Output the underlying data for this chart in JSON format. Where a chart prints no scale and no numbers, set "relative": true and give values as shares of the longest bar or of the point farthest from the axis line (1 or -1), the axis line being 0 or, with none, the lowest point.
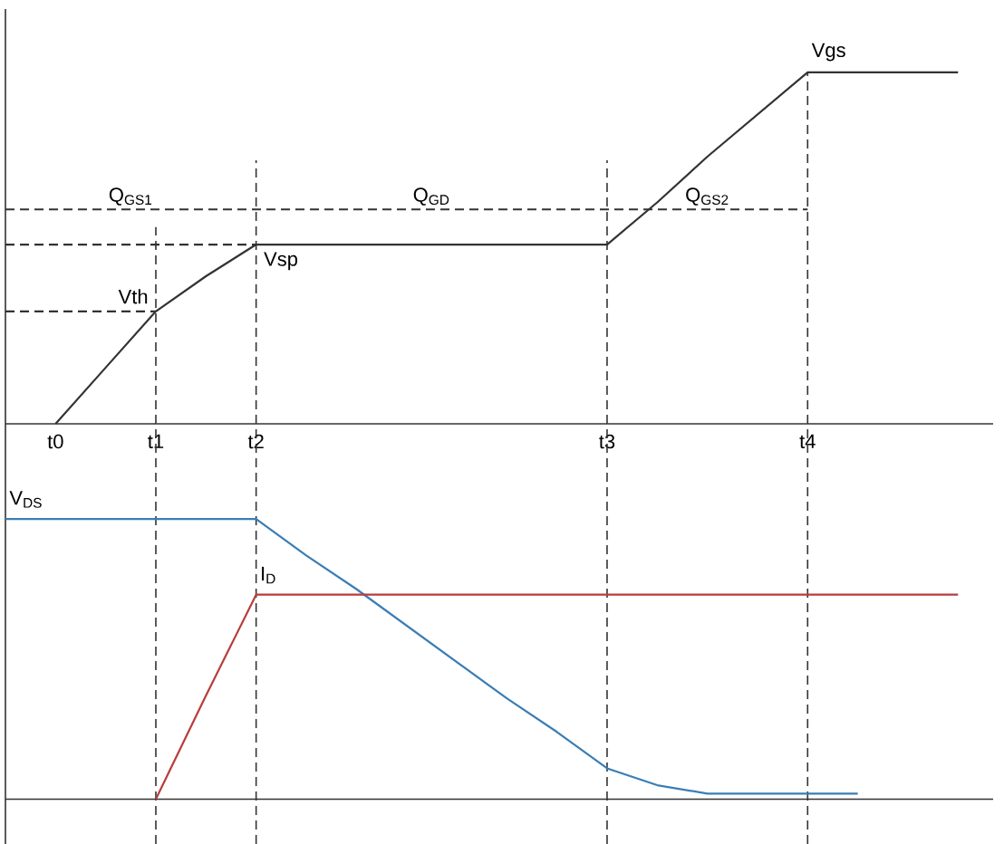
{
  "chart_data": [
    {
      "type": "line",
      "relative": true,
      "tick_labels": "x",
      "categories": [
        null,
        "t0",
        null,
        "t1",
        null,
        "t2",
        null,
        null,
        null,
        null,
        null,
        null,
        "t3",
        null,
        null,
        null,
        "t4",
        null,
        null,
        null
      ],
      "series": [
        {
          "name": "Vgs",
          "color": "#333333",
          "values": [
            null,
            0,
            0.16,
            0.32,
            0.42,
            0.51,
            0.51,
            0.51,
            0.51,
            0.51,
            0.51,
            0.51,
            0.51,
            0.63,
            0.76,
            0.88,
            1,
            1,
            1,
            1
          ]
        },
        {
          "color": "#333333",
          "line_style": "dashed",
          "values": [
            0.32,
            0.32,
            0.32,
            0.32,
            null,
            null,
            null,
            null,
            null,
            null,
            null,
            null,
            null,
            null,
            null,
            null,
            null,
            null,
            null,
            null
          ]
        },
        {
          "color": "#333333",
          "line_style": "dashed",
          "values": [
            0.51,
            0.51,
            0.51,
            0.51,
            0.51,
            0.51,
            null,
            null,
            null,
            null,
            null,
            null,
            null,
            null,
            null,
            null,
            null,
            null,
            null,
            null
          ]
        },
        {
          "color": "#333333",
          "line_style": "dashed",
          "values": [
            0.61,
            0.61,
            0.61,
            0.61,
            0.61,
            0.61,
            0.61,
            0.61,
            0.61,
            0.61,
            0.61,
            0.61,
            0.61,
            0.61,
            0.61,
            0.61,
            0.61,
            null,
            null,
            null
          ]
        }
      ],
      "ref_lines": [
        {
          "axis": "x",
          "value": "t1",
          "color": "#333333",
          "line_style": "dashed"
        },
        {
          "axis": "x",
          "value": "t2",
          "color": "#333333",
          "line_style": "dashed"
        },
        {
          "axis": "x",
          "value": "t3",
          "color": "#333333",
          "line_style": "dashed"
        },
        {
          "axis": "x",
          "value": "t4",
          "color": "#333333",
          "line_style": "dashed"
        }
      ],
      "annotations": [
        {
          "text": "Vth",
          "x": "t1",
          "y": 0.32
        },
        {
          "text": "Vsp",
          "x": "t2",
          "y": 0.51
        },
        {
          "text": "Q$_{GS1}$",
          "y": 0.61
        },
        {
          "text": "Q$_{GD}$",
          "y": 0.61
        },
        {
          "text": "Q$_{GS2}$",
          "y": 0.61
        }
      ]
    },
    {
      "type": "line",
      "relative": true,
      "tick_labels": false,
      "categories": [
        null,
        "t0",
        null,
        "t1",
        null,
        "t2",
        null,
        null,
        null,
        null,
        null,
        null,
        "t3",
        null,
        null,
        null,
        "t4",
        null,
        null,
        null
      ],
      "series": [
        {
          "name": "V$_{DS}$",
          "color": "#3a7db5",
          "values": [
            1,
            1,
            1,
            1,
            1,
            1,
            0.87,
            0.75,
            0.62,
            0.49,
            0.36,
            0.24,
            0.11,
            0.05,
            0.02,
            0.02,
            0.02,
            0.02,
            null,
            null
          ]
        },
        {
          "name": "I$_{D}$",
          "color": "#b83c3c",
          "values": [
            null,
            null,
            null,
            0,
            0.37,
            0.73,
            0.73,
            0.73,
            0.73,
            0.73,
            0.73,
            0.73,
            0.73,
            0.73,
            0.73,
            0.73,
            0.73,
            0.73,
            0.73,
            0.73
          ]
        }
      ],
      "ref_lines": [
        {
          "axis": "x",
          "value": "t1",
          "color": "#333333",
          "line_style": "dashed"
        },
        {
          "axis": "x",
          "value": "t2",
          "color": "#333333",
          "line_style": "dashed"
        },
        {
          "axis": "x",
          "value": "t3",
          "color": "#333333",
          "line_style": "dashed"
        },
        {
          "axis": "x",
          "value": "t4",
          "color": "#333333",
          "line_style": "dashed"
        }
      ]
    }
  ]
}
